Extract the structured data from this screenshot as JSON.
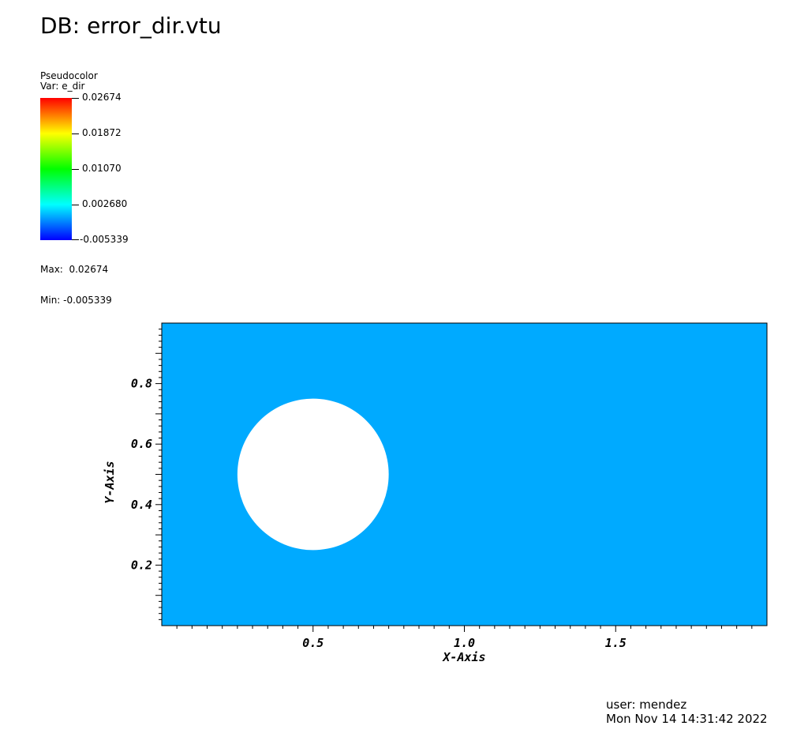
{
  "window": {
    "db_title": "DB: error_dir.vtu"
  },
  "legend": {
    "plot_type": "Pseudocolor",
    "var_label": "Var: e_dir",
    "labels": [
      "0.02674",
      "0.01872",
      "0.01070",
      "0.002680",
      "-0.005339"
    ],
    "max_label": "Max:  0.02674",
    "min_label": "Min: -0.005339",
    "colors": [
      "#ff0000",
      "#ffff00",
      "#00ff00",
      "#00ffff",
      "#0000ff"
    ]
  },
  "chart_data": {
    "type": "heatmap",
    "title": "",
    "xlabel": "X-Axis",
    "ylabel": "Y-Axis",
    "xlim": [
      0,
      2
    ],
    "ylim": [
      0,
      1
    ],
    "x_ticks": [
      "0.5",
      "1.0",
      "1.5"
    ],
    "y_ticks": [
      "0.2",
      "0.4",
      "0.6",
      "0.8"
    ],
    "x_tick_values": [
      0.5,
      1.0,
      1.5
    ],
    "y_tick_values": [
      0.2,
      0.4,
      0.6,
      0.8
    ],
    "field_value_approx": 0.0027,
    "field_color": "#00aaff",
    "hole": {
      "shape": "circle",
      "cx": 0.5,
      "cy": 0.5,
      "r": 0.25,
      "color": "#ffffff"
    },
    "grid": false
  },
  "footer": {
    "user": "user: mendez",
    "timestamp": "Mon Nov 14 14:31:42 2022"
  }
}
